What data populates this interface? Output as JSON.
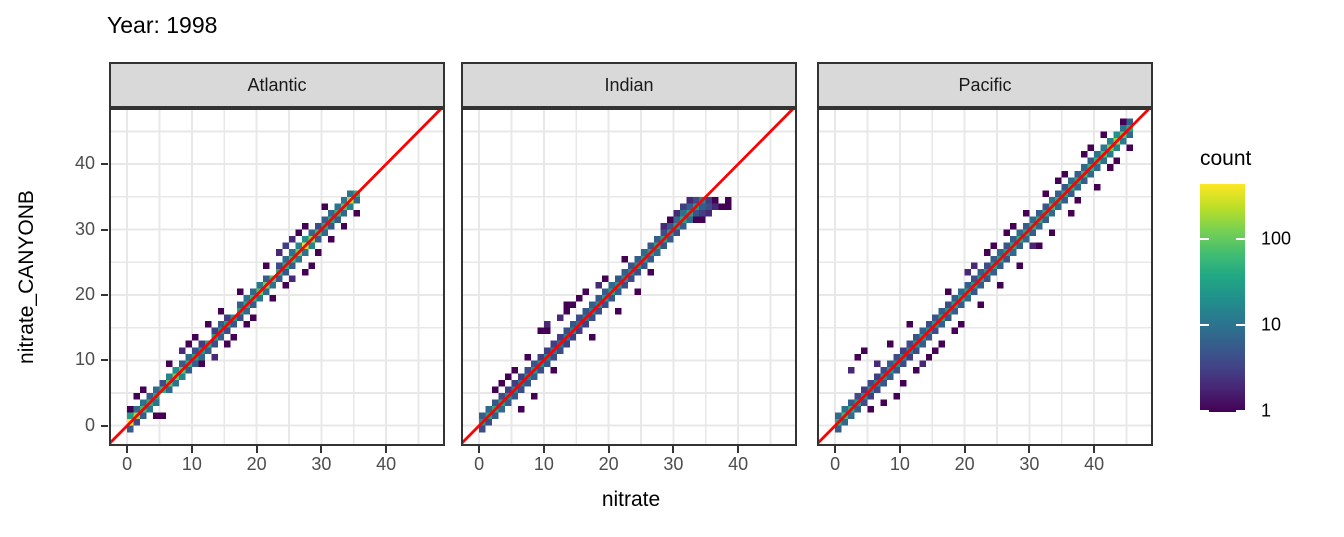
{
  "chart_data": {
    "type": "heatmap",
    "subtype": "bin2d-faceted",
    "title": "Year: 1998",
    "xlabel": "nitrate",
    "ylabel": "nitrate_CANYONB",
    "facets": [
      "Atlantic",
      "Indian",
      "Pacific"
    ],
    "x_ticks": [
      0,
      10,
      20,
      30,
      40
    ],
    "y_ticks": [
      0,
      10,
      20,
      30,
      40
    ],
    "xlim": [
      -2.8,
      49.1
    ],
    "ylim": [
      -3.1,
      48.6
    ],
    "grid_step": 5,
    "grid_on": true,
    "bin_size": 1,
    "identity_line": {
      "slope": 1,
      "intercept": 0,
      "color": "#FF0000"
    },
    "legend": {
      "title": "count",
      "ticks": [
        1,
        10,
        100
      ],
      "max": 430,
      "scale": "log10",
      "position": "right"
    },
    "style": {
      "panel_bg": "#FFFFFF",
      "grid_color": "#E8E8E8",
      "panel_border": "#333333",
      "strip_fill": "#D9D9D9",
      "strip_text": "#1a1a1a",
      "tick_label_color": "#4D4D4D",
      "viridis": [
        "#440154",
        "#482475",
        "#414487",
        "#355F8D",
        "#2A788E",
        "#21918C",
        "#22A884",
        "#44BF70",
        "#7AD151",
        "#BDDF26",
        "#FDE725"
      ]
    },
    "panels": [
      {
        "name": "Atlantic",
        "diag_start": 0,
        "diag": [
          420,
          160,
          60,
          45,
          35,
          50,
          80,
          110,
          90,
          45,
          30,
          25,
          35,
          30,
          25,
          30,
          25,
          35,
          40,
          50,
          90,
          110,
          80,
          45,
          40,
          55,
          120,
          320,
          140,
          60,
          40,
          35,
          50,
          80,
          230,
          45
        ],
        "upper": [
          30,
          8,
          10,
          6,
          8,
          4,
          15,
          20,
          6,
          8,
          4,
          3,
          0,
          3,
          6,
          3,
          0,
          6,
          10,
          8,
          12,
          6,
          0,
          4,
          8,
          10,
          15,
          20,
          8,
          4,
          6,
          8,
          10,
          12,
          10,
          0
        ],
        "lower": [
          6,
          4,
          6,
          12,
          10,
          0,
          8,
          10,
          15,
          6,
          6,
          8,
          6,
          4,
          6,
          4,
          5,
          4,
          8,
          6,
          10,
          8,
          10,
          6,
          5,
          6,
          12,
          10,
          15,
          6,
          8,
          5,
          6,
          8,
          15,
          8
        ],
        "outliers": [
          [
            0,
            2,
            1
          ],
          [
            1,
            4,
            1
          ],
          [
            2,
            5,
            1
          ],
          [
            4,
            1,
            1
          ],
          [
            5,
            1,
            1
          ],
          [
            6,
            9,
            1
          ],
          [
            8,
            11,
            2
          ],
          [
            9,
            12,
            1
          ],
          [
            10,
            13,
            1
          ],
          [
            11,
            9,
            1
          ],
          [
            12,
            15,
            1
          ],
          [
            13,
            10,
            2
          ],
          [
            14,
            17,
            1
          ],
          [
            15,
            12,
            1
          ],
          [
            16,
            13,
            1
          ],
          [
            17,
            20,
            1
          ],
          [
            18,
            15,
            1
          ],
          [
            19,
            16,
            1
          ],
          [
            21,
            24,
            1
          ],
          [
            22,
            19,
            1
          ],
          [
            23,
            26,
            2
          ],
          [
            24,
            27,
            3
          ],
          [
            25,
            28,
            2
          ],
          [
            24,
            21,
            1
          ],
          [
            25,
            22,
            2
          ],
          [
            26,
            29,
            1
          ],
          [
            27,
            30,
            1
          ],
          [
            27,
            23,
            1
          ],
          [
            28,
            24,
            1
          ],
          [
            29,
            26,
            1
          ],
          [
            30,
            33,
            1
          ],
          [
            31,
            28,
            1
          ],
          [
            33,
            30,
            1
          ],
          [
            35,
            32,
            1
          ]
        ]
      },
      {
        "name": "Indian",
        "diag_start": 0,
        "diag": [
          25,
          35,
          40,
          30,
          20,
          15,
          12,
          18,
          25,
          20,
          15,
          12,
          10,
          12,
          15,
          10,
          12,
          15,
          20,
          25,
          30,
          25,
          20,
          18,
          22,
          25,
          30,
          35,
          30,
          25,
          30,
          35,
          30,
          25,
          15
        ],
        "upper": [
          6,
          8,
          5,
          4,
          3,
          3,
          3,
          4,
          5,
          3,
          3,
          3,
          3,
          4,
          5,
          4,
          5,
          6,
          5,
          6,
          8,
          5,
          6,
          5,
          6,
          8,
          5,
          6,
          4,
          5,
          8,
          10,
          6,
          4,
          0
        ],
        "lower": [
          4,
          4,
          6,
          8,
          6,
          5,
          4,
          5,
          6,
          4,
          5,
          4,
          4,
          3,
          3,
          3,
          3,
          4,
          4,
          4,
          5,
          6,
          4,
          4,
          4,
          5,
          6,
          8,
          5,
          6,
          4,
          6,
          8,
          5,
          6
        ],
        "outliers": [
          [
            2,
            5,
            1
          ],
          [
            3,
            6,
            1
          ],
          [
            4,
            7,
            1
          ],
          [
            5,
            8,
            1
          ],
          [
            6,
            2,
            1
          ],
          [
            7,
            10,
            1
          ],
          [
            8,
            4,
            1
          ],
          [
            9,
            14,
            1
          ],
          [
            10,
            15,
            2
          ],
          [
            10,
            14,
            1
          ],
          [
            11,
            8,
            1
          ],
          [
            12,
            16,
            2
          ],
          [
            13,
            17,
            1
          ],
          [
            13,
            18,
            1
          ],
          [
            14,
            18,
            1
          ],
          [
            15,
            19,
            1
          ],
          [
            16,
            20,
            1
          ],
          [
            17,
            13,
            1
          ],
          [
            18,
            21,
            2
          ],
          [
            19,
            22,
            1
          ],
          [
            21,
            17,
            1
          ],
          [
            22,
            25,
            1
          ],
          [
            24,
            20,
            1
          ],
          [
            26,
            23,
            1
          ],
          [
            28,
            30,
            2
          ],
          [
            29,
            31,
            1
          ],
          [
            30,
            32,
            2
          ],
          [
            31,
            33,
            3
          ],
          [
            32,
            34,
            2
          ],
          [
            33,
            31,
            1
          ],
          [
            34,
            31,
            1
          ],
          [
            34,
            32,
            3
          ],
          [
            35,
            32,
            2
          ],
          [
            35,
            33,
            4
          ],
          [
            35,
            34,
            3
          ],
          [
            36,
            33,
            2
          ],
          [
            36,
            34,
            1
          ],
          [
            37,
            33,
            1
          ],
          [
            38,
            33,
            1
          ],
          [
            38,
            34,
            1
          ]
        ]
      },
      {
        "name": "Pacific",
        "diag_start": 0,
        "diag": [
          45,
          60,
          40,
          25,
          20,
          18,
          15,
          20,
          25,
          20,
          18,
          15,
          20,
          25,
          20,
          25,
          30,
          25,
          30,
          35,
          30,
          25,
          30,
          25,
          30,
          35,
          30,
          35,
          40,
          35,
          45,
          40,
          35,
          60,
          40,
          35,
          45,
          40,
          50,
          45,
          55,
          70,
          110,
          150,
          90,
          40
        ],
        "upper": [
          8,
          10,
          6,
          4,
          3,
          4,
          3,
          4,
          6,
          4,
          3,
          4,
          5,
          6,
          4,
          5,
          6,
          4,
          6,
          8,
          6,
          4,
          6,
          4,
          6,
          8,
          5,
          6,
          8,
          6,
          8,
          6,
          5,
          10,
          6,
          5,
          8,
          6,
          8,
          6,
          10,
          12,
          15,
          20,
          10,
          6
        ],
        "lower": [
          6,
          8,
          8,
          6,
          4,
          3,
          4,
          5,
          6,
          5,
          4,
          3,
          4,
          6,
          5,
          4,
          6,
          5,
          6,
          6,
          8,
          5,
          6,
          5,
          6,
          6,
          5,
          8,
          6,
          8,
          6,
          8,
          6,
          8,
          8,
          6,
          6,
          8,
          6,
          8,
          8,
          10,
          12,
          15,
          12,
          8
        ],
        "outliers": [
          [
            2,
            8,
            2
          ],
          [
            3,
            10,
            1
          ],
          [
            4,
            11,
            1
          ],
          [
            5,
            2,
            1
          ],
          [
            6,
            9,
            2
          ],
          [
            7,
            3,
            1
          ],
          [
            8,
            12,
            1
          ],
          [
            9,
            4,
            1
          ],
          [
            10,
            6,
            1
          ],
          [
            11,
            15,
            1
          ],
          [
            12,
            8,
            1
          ],
          [
            13,
            9,
            2
          ],
          [
            14,
            10,
            1
          ],
          [
            15,
            11,
            1
          ],
          [
            16,
            12,
            1
          ],
          [
            17,
            20,
            1
          ],
          [
            18,
            14,
            1
          ],
          [
            19,
            15,
            1
          ],
          [
            20,
            23,
            2
          ],
          [
            21,
            24,
            2
          ],
          [
            22,
            18,
            1
          ],
          [
            23,
            26,
            1
          ],
          [
            24,
            27,
            1
          ],
          [
            25,
            21,
            1
          ],
          [
            26,
            29,
            1
          ],
          [
            27,
            30,
            1
          ],
          [
            28,
            24,
            1
          ],
          [
            29,
            32,
            1
          ],
          [
            30,
            27,
            2
          ],
          [
            31,
            27,
            1
          ],
          [
            32,
            35,
            1
          ],
          [
            33,
            29,
            1
          ],
          [
            34,
            37,
            1
          ],
          [
            35,
            38,
            1
          ],
          [
            36,
            32,
            1
          ],
          [
            37,
            34,
            1
          ],
          [
            38,
            41,
            1
          ],
          [
            39,
            42,
            1
          ],
          [
            40,
            36,
            1
          ],
          [
            41,
            44,
            1
          ],
          [
            42,
            39,
            1
          ],
          [
            43,
            40,
            1
          ],
          [
            44,
            46,
            1
          ],
          [
            45,
            42,
            1
          ]
        ]
      }
    ]
  }
}
